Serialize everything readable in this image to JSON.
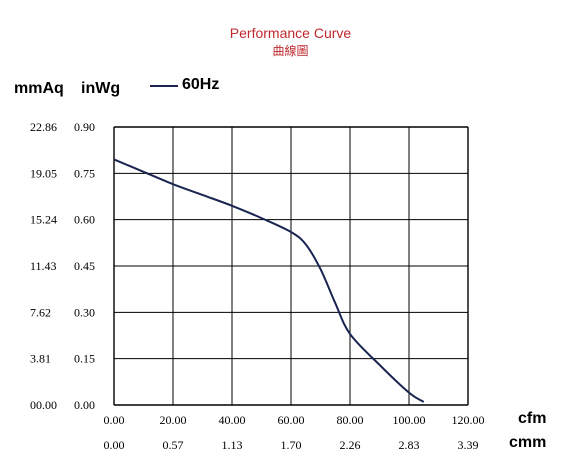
{
  "chart_data": {
    "type": "line",
    "title": "Performance Curve",
    "subtitle": "曲線圖",
    "y_units": [
      "mmAq",
      "inWg"
    ],
    "x_units": [
      "cfm",
      "cmm"
    ],
    "legend": [
      {
        "name": "60Hz",
        "color": "#1a2450"
      }
    ],
    "xlim": [
      0,
      120
    ],
    "ylim": [
      0,
      0.9
    ],
    "grid": true,
    "x_ticks_cfm": [
      "0.00",
      "20.00",
      "40.00",
      "60.00",
      "80.00",
      "100.00",
      "120.00"
    ],
    "x_ticks_cmm": [
      "0.00",
      "0.57",
      "1.13",
      "1.70",
      "2.26",
      "2.83",
      "3.39"
    ],
    "y_ticks_inwg": [
      "0.00",
      "0.15",
      "0.30",
      "0.45",
      "0.60",
      "0.75",
      "0.90"
    ],
    "y_ticks_mmaq": [
      "00.00",
      "3.81",
      "7.62",
      "11.43",
      "15.24",
      "19.05",
      "22.86"
    ],
    "series": [
      {
        "name": "60Hz",
        "x": [
          0,
          10,
          20,
          30,
          40,
          50,
          60,
          65,
          70,
          75,
          80,
          90,
          100,
          105
        ],
        "y": [
          0.795,
          0.755,
          0.715,
          0.68,
          0.645,
          0.605,
          0.56,
          0.52,
          0.44,
          0.33,
          0.23,
          0.13,
          0.04,
          0.01
        ]
      }
    ]
  }
}
